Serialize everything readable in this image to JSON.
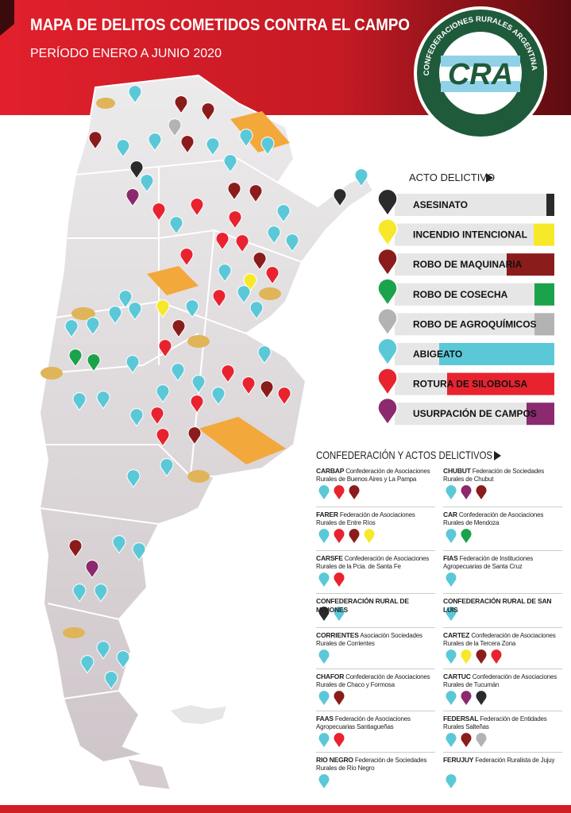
{
  "header": {
    "title": "MAPA DE DELITOS COMETIDOS CONTRA EL CAMPO",
    "subtitle": "PERÍODO  ENERO A JUNIO 2020",
    "logo_ring": "CONFEDERACIONES RURALES ARGENTINAS",
    "logo_text": "CRA"
  },
  "legend": {
    "title": "ACTO DELICTIVO",
    "items": [
      {
        "label": "ASESINATO",
        "color": "#2b2b2b",
        "value": 10
      },
      {
        "label": "INCENDIO INTENCIONAL",
        "color": "#f7e82a",
        "value": 26
      },
      {
        "label": "ROBO DE MAQUINARIA",
        "color": "#8b1c1c",
        "value": 60
      },
      {
        "label": "ROBO DE COSECHA",
        "color": "#1aa34a",
        "value": 25
      },
      {
        "label": "ROBO DE AGROQUÍMICOS",
        "color": "#b3b3b3",
        "value": 25
      },
      {
        "label": "ABIGEATO",
        "color": "#5bc8d8",
        "value": 145
      },
      {
        "label": "ROTURA DE SILOBOLSA",
        "color": "#e8232f",
        "value": 135
      },
      {
        "label": "USURPACIÓN DE CAMPOS",
        "color": "#8b2a6e",
        "value": 35
      }
    ]
  },
  "confederations": {
    "title": "CONFEDERACIÓN Y ACTOS DELICTIVOS",
    "left": [
      {
        "code": "CARBAP",
        "description": "Confederación de Asociaciones Rurales de Buenos Aires y La Pampa",
        "pins": [
          "#5bc8d8",
          "#e8232f",
          "#8b1c1c"
        ]
      },
      {
        "code": "FARER",
        "description": "Federación de Asociaciones Rurales de Entre Ríos",
        "pins": [
          "#5bc8d8",
          "#e8232f",
          "#8b1c1c",
          "#f7e82a"
        ]
      },
      {
        "code": "CARSFE",
        "description": "Confederación de Asociaciones Rurales de la Pcia. de Santa Fe",
        "pins": [
          "#5bc8d8",
          "#e8232f"
        ]
      },
      {
        "code": "CONFEDERACIÓN RURAL DE MISIONES",
        "pins": [
          "#2b2b2b",
          "#5bc8d8"
        ]
      },
      {
        "code": "CORRIENTES",
        "description": "Asociación Sociedades Rurales de Corrientes",
        "pins": [
          "#5bc8d8"
        ]
      },
      {
        "code": "CHAFOR",
        "description": "Confederación de Asociaciones Rurales de Chaco y Formosa",
        "pins": [
          "#5bc8d8",
          "#8b1c1c"
        ]
      },
      {
        "code": "FAAS",
        "description": "Federación de Asociaciones Agropecuarias Santiagueñas",
        "pins": [
          "#5bc8d8",
          "#e8232f"
        ]
      },
      {
        "code": "RIO NEGRO",
        "description": "Federación de Sociedades Rurales de Río Negro",
        "pins": [
          "#5bc8d8"
        ]
      }
    ],
    "right": [
      {
        "code": "CHUBUT",
        "description": "Federación de Sociedades Rurales de Chubut",
        "pins": [
          "#5bc8d8",
          "#8b2a6e",
          "#8b1c1c"
        ]
      },
      {
        "code": "CAR",
        "description": "Confederación de Asociaciones Rurales de Mendoza",
        "pins": [
          "#5bc8d8",
          "#1aa34a"
        ]
      },
      {
        "code": "FIAS",
        "description": "Federación de Instituciones Agropecuarias de Santa Cruz",
        "pins": [
          "#5bc8d8"
        ]
      },
      {
        "code": "CONFEDERACIÓN RURAL DE SAN LUIS",
        "pins": [
          "#5bc8d8"
        ]
      },
      {
        "code": "CARTEZ",
        "description": "Confederación de Asociaciones Rurales de la Tercera Zona",
        "pins": [
          "#5bc8d8",
          "#f7e82a",
          "#8b1c1c",
          "#e8232f"
        ]
      },
      {
        "code": "CARTUC",
        "description": "Confederación de Asociaciones Rurales de Tucumán",
        "pins": [
          "#5bc8d8",
          "#8b2a6e",
          "#2b2b2b"
        ]
      },
      {
        "code": "FEDERSAL",
        "description": "Federación de Entidades Rurales Salteñas",
        "pins": [
          "#5bc8d8",
          "#8b1c1c",
          "#b3b3b3"
        ]
      },
      {
        "code": "FERUJUY",
        "description": "Federación Ruralista de Jujuy",
        "pins": [
          "#5bc8d8"
        ]
      }
    ]
  }
}
